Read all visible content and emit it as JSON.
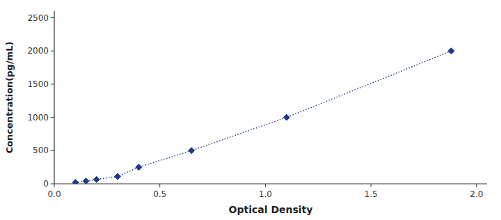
{
  "chart_data": {
    "type": "line",
    "x": [
      0.1,
      0.15,
      0.2,
      0.3,
      0.4,
      0.65,
      1.1,
      1.88
    ],
    "series": [
      {
        "values": [
          20,
          40,
          65,
          110,
          250,
          500,
          1000,
          2000
        ],
        "color": "#1f3a8a",
        "marker": "diamond",
        "line_style": "dotted"
      }
    ],
    "xlabel": "Optical Density",
    "ylabel": "Concentration(pg/mL)",
    "xlim": [
      0,
      2.05
    ],
    "ylim": [
      0,
      2600
    ],
    "xticks": [
      {
        "value": 0,
        "label": "0.0"
      },
      0.5,
      {
        "value": 1.0,
        "label": "1.0"
      },
      1.5,
      {
        "value": 2.0,
        "label": "2.0"
      }
    ],
    "yticks": [
      0,
      500,
      1000,
      1500,
      2000,
      2500
    ],
    "grid": false
  }
}
